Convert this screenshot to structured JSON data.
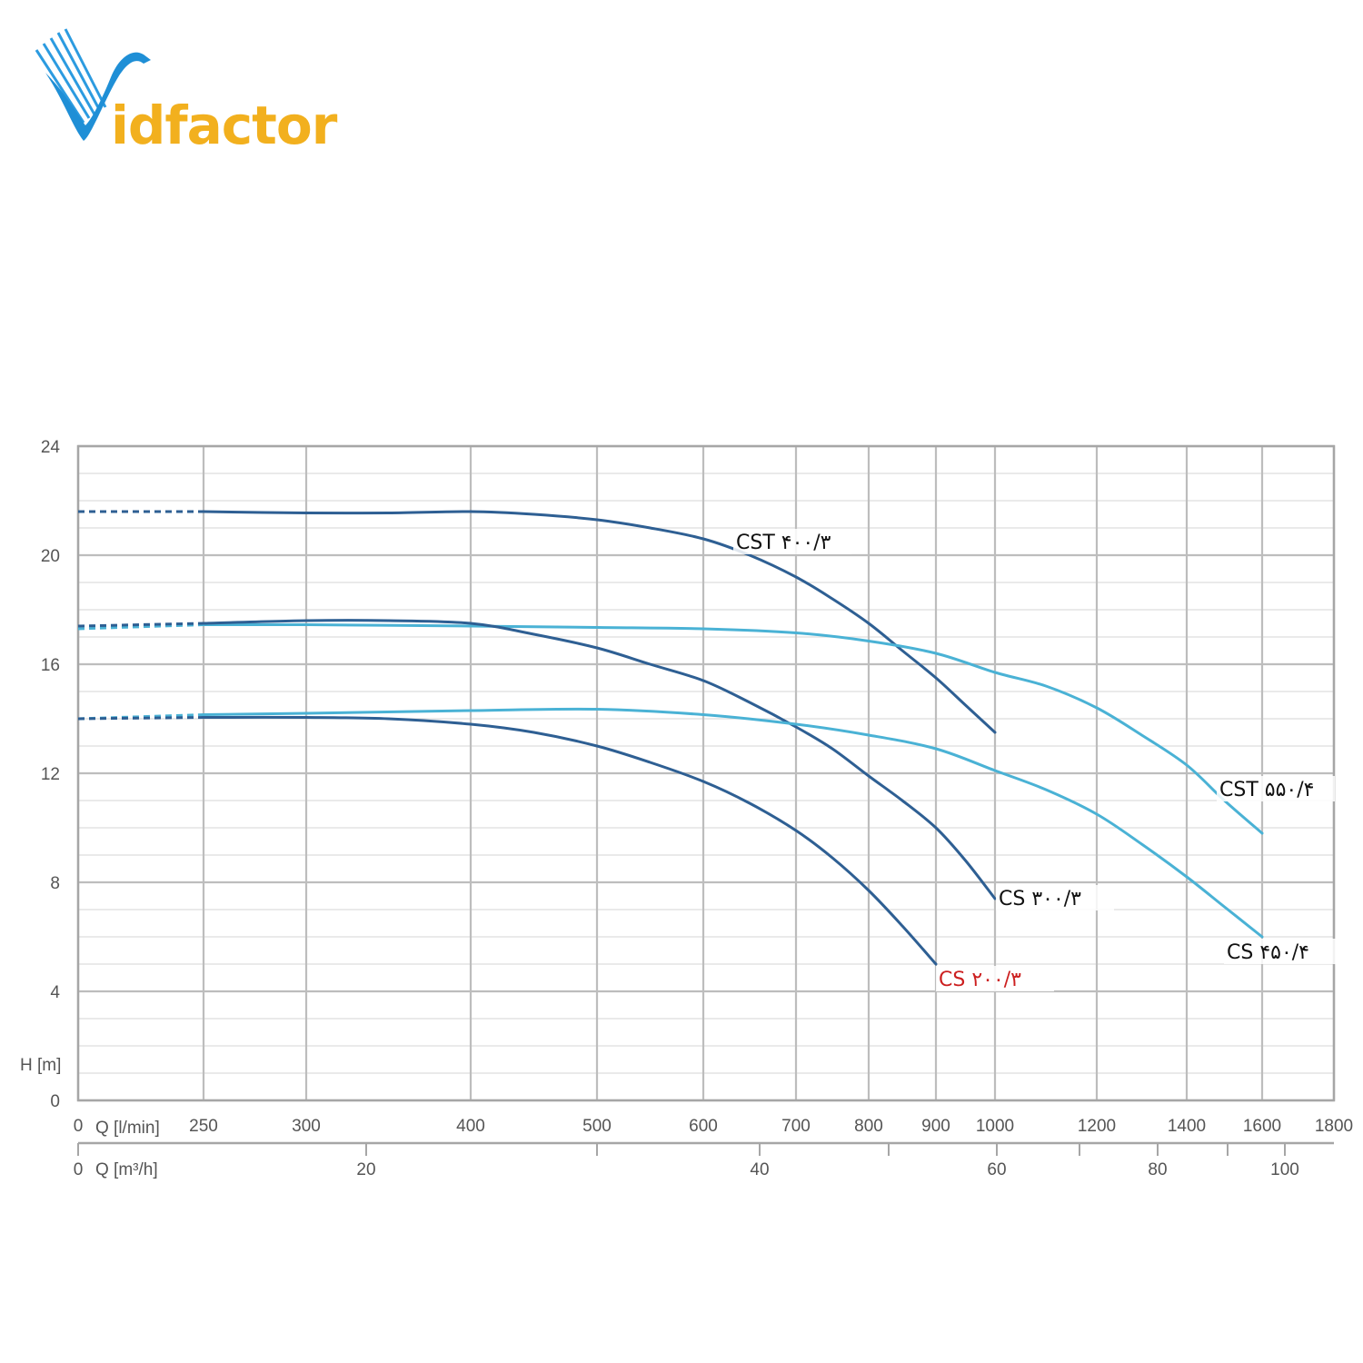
{
  "brand": {
    "logo_text": "Vidfactor",
    "colors": {
      "blue": "#1f8fd6",
      "blue_dark": "#1565b3",
      "gold": "#f2b01e"
    }
  },
  "chart_data": {
    "type": "line",
    "title": "",
    "ylabel": "H [m]",
    "xlabel_primary": "Q [l/min]",
    "xlabel_secondary": "Q [m³/h]",
    "ylim": [
      0,
      24
    ],
    "y_ticks": [
      0,
      4,
      8,
      12,
      16,
      20,
      24
    ],
    "x_ticks_lmin": [
      "0",
      "250",
      "300",
      "400",
      "500",
      "600",
      "700",
      "800",
      "900",
      "1000",
      "1200",
      "1400",
      "1600",
      "1800"
    ],
    "x_ticks_m3h": [
      "0",
      "20",
      "40",
      "60",
      "80",
      "100"
    ],
    "grid": true,
    "x_scale": "nonlinear (tick positions as printed)",
    "colors": {
      "dark": "#2e5f93",
      "light": "#4ab2d5",
      "red_label": "#cc1f1f",
      "grid": "#c8c8c8"
    },
    "series": [
      {
        "name": "CST ۴۰۰/۳",
        "color_key": "dark",
        "x": [
          0,
          250,
          300,
          350,
          400,
          450,
          500,
          550,
          600,
          650,
          700,
          750,
          800,
          850,
          900,
          950,
          1000
        ],
        "y": [
          21.6,
          21.6,
          21.55,
          21.55,
          21.6,
          21.5,
          21.3,
          21.0,
          20.6,
          20.0,
          19.2,
          18.4,
          17.5,
          16.5,
          15.5,
          14.5,
          13.5
        ]
      },
      {
        "name": "CST ۵۵۰/۴",
        "color_key": "light",
        "x": [
          0,
          250,
          300,
          400,
          500,
          600,
          700,
          800,
          900,
          1000,
          1100,
          1200,
          1300,
          1400,
          1500,
          1600
        ],
        "y": [
          17.3,
          17.45,
          17.45,
          17.4,
          17.35,
          17.3,
          17.15,
          16.85,
          16.4,
          15.7,
          15.2,
          14.4,
          13.4,
          12.3,
          11.0,
          9.8
        ]
      },
      {
        "name": "CS ۳۰۰/۳",
        "color_key": "dark",
        "x": [
          0,
          250,
          300,
          350,
          400,
          450,
          500,
          550,
          600,
          650,
          700,
          750,
          800,
          850,
          900,
          950,
          1000
        ],
        "y": [
          17.4,
          17.5,
          17.6,
          17.6,
          17.5,
          17.1,
          16.6,
          16.0,
          15.4,
          14.6,
          13.7,
          12.9,
          11.9,
          11.0,
          10.0,
          8.8,
          7.4
        ]
      },
      {
        "name": "CS ۴۵۰/۴",
        "color_key": "light",
        "x": [
          0,
          250,
          300,
          400,
          500,
          600,
          700,
          800,
          900,
          1000,
          1100,
          1200,
          1300,
          1400,
          1500,
          1600
        ],
        "y": [
          14.0,
          14.15,
          14.2,
          14.3,
          14.35,
          14.15,
          13.8,
          13.4,
          12.9,
          12.1,
          11.4,
          10.5,
          9.4,
          8.2,
          7.1,
          6.0
        ]
      },
      {
        "name": "CS ۲۰۰/۳",
        "color_key": "dark",
        "label_color_key": "red_label",
        "x": [
          0,
          250,
          300,
          350,
          400,
          450,
          500,
          550,
          600,
          650,
          700,
          750,
          800,
          850,
          900
        ],
        "y": [
          14.0,
          14.05,
          14.05,
          14.0,
          13.8,
          13.5,
          13.0,
          12.4,
          11.7,
          10.9,
          9.9,
          8.9,
          7.7,
          6.4,
          5.0
        ]
      }
    ]
  }
}
